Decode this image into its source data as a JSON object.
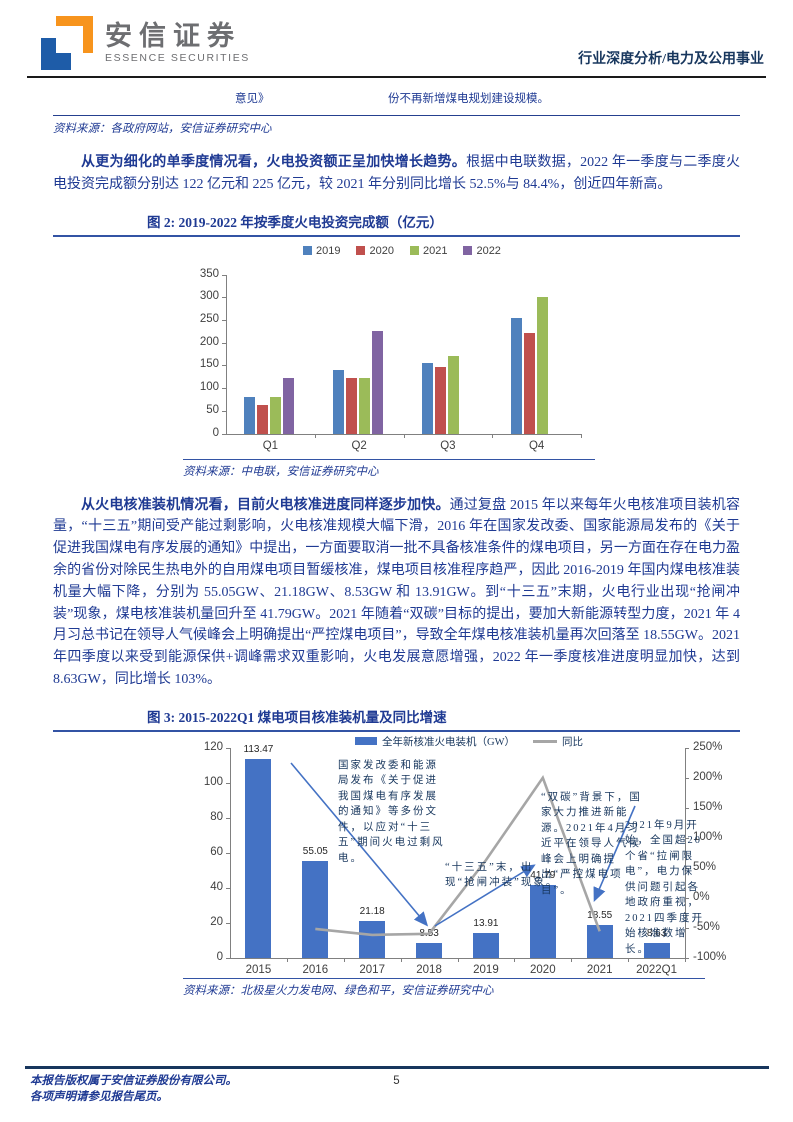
{
  "header": {
    "logo_cn": "安信证券",
    "logo_en": "ESSENCE SECURITIES",
    "report_type": "行业深度分析/电力及公用事业"
  },
  "table_fragment": {
    "col1": "意见》",
    "col2": "份不再新增煤电规划建设规模。",
    "source": "资料来源：各政府网站，安信证券研究中心"
  },
  "paragraph1": {
    "lead_bold": "从更为细化的单季度情况看，火电投资额正呈加快增长趋势。",
    "rest": "根据中电联数据，2022 年一季度与二季度火电投资完成额分别达 122 亿元和 225 亿元，较 2021 年分别同比增长 52.5%与 84.4%，创近四年新高。"
  },
  "figure2": {
    "title": "图 2: 2019-2022 年按季度火电投资完成额（亿元）",
    "source": "资料来源：中电联，安信证券研究中心"
  },
  "paragraph2": {
    "lead_bold": "从火电核准装机情况看，目前火电核准进度同样逐步加快。",
    "rest": "通过复盘 2015 年以来每年火电核准项目装机容量，“十三五”期间受产能过剩影响，火电核准规模大幅下滑，2016 年在国家发改委、国家能源局发布的《关于促进我国煤电有序发展的通知》中提出，一方面要取消一批不具备核准条件的煤电项目，另一方面在存在电力盈余的省份对除民生热电外的自用煤电项目暂缓核准，煤电项目核准程序趋严，因此 2016-2019 年国内煤电核准装机量大幅下降，分别为 55.05GW、21.18GW、8.53GW 和 13.91GW。到“十三五”末期，火电行业出现“抢闸冲装”现象，煤电核准装机量回升至 41.79GW。2021 年随着“双碳”目标的提出，要加大新能源转型力度，2021 年 4 月习总书记在领导人气候峰会上明确提出“严控煤电项目”，导致全年煤电核准装机量再次回落至 18.55GW。2021 年四季度以来受到能源保供+调峰需求双重影响，火电发展意愿增强，2022 年一季度核准进度明显加快，达到 8.63GW，同比增长 103%。"
  },
  "figure3": {
    "title": "图 3: 2015-2022Q1 煤电项目核准装机量及同比增速",
    "source": "资料来源：北极星火力发电网、绿色和平，安信证券研究中心"
  },
  "footer": {
    "line1": "本报告版权属于安信证券股份有限公司。",
    "line2": "各项声明请参见报告尾页。",
    "page": "5"
  },
  "chart_data": [
    {
      "type": "bar",
      "title": "2019-2022 年按季度火电投资完成额（亿元）",
      "categories": [
        "Q1",
        "Q2",
        "Q3",
        "Q4"
      ],
      "series": [
        {
          "name": "2019",
          "color": "#4F81BD",
          "values": [
            80,
            140,
            155,
            255
          ]
        },
        {
          "name": "2020",
          "color": "#C0504D",
          "values": [
            62,
            122,
            147,
            222
          ]
        },
        {
          "name": "2021",
          "color": "#9BBB59",
          "values": [
            80,
            122,
            170,
            301
          ]
        },
        {
          "name": "2022",
          "color": "#8064A2",
          "values": [
            122,
            225,
            null,
            null
          ]
        }
      ],
      "ylim": [
        0,
        350
      ],
      "ytick_step": 50,
      "legend_position": "top",
      "grid": false
    },
    {
      "type": "bar+line",
      "title": "2015-2022Q1 煤电项目核准装机量及同比增速",
      "categories": [
        "2015",
        "2016",
        "2017",
        "2018",
        "2019",
        "2020",
        "2021",
        "2022Q1"
      ],
      "bar_series": {
        "name": "全年新核准火电装机（GW）",
        "color": "#4472C4",
        "values": [
          113.47,
          55.05,
          21.18,
          8.53,
          13.91,
          41.79,
          18.55,
          8.63
        ],
        "labels": [
          "113.47",
          "55.05",
          "21.18",
          "8.53",
          "13.91",
          "41.79",
          "18.55",
          "8.63"
        ]
      },
      "line_series": {
        "name": "同比",
        "color": "#A6A6A6",
        "axis": "right",
        "values_pct": [
          null,
          -51.5,
          -61.5,
          -59.7,
          63.1,
          200.4,
          -55.6,
          null
        ]
      },
      "y_left": {
        "min": 0,
        "max": 120,
        "step": 20
      },
      "y_right": {
        "min": -100,
        "max": 250,
        "step": 50,
        "format": "percent"
      },
      "legend_position": "top",
      "grid": false,
      "annotations": [
        "国家发改委和能源局发布《关于促进我国煤电有序发展的通知》等多份文件，以应对“十三五”期间火电过剩风电。",
        "“十三五”末，出现“抢闸冲装”现象。",
        "“双碳”背景下，国家大力推进新能源。2021年4月习近平在领导人气候峰会上明确提出“严控煤电项目”。",
        "2021年9月开始，全国超20个省“拉闸限电”，电力保供问题引起各地政府重视，2021四季度开始核准数增长。"
      ]
    }
  ]
}
